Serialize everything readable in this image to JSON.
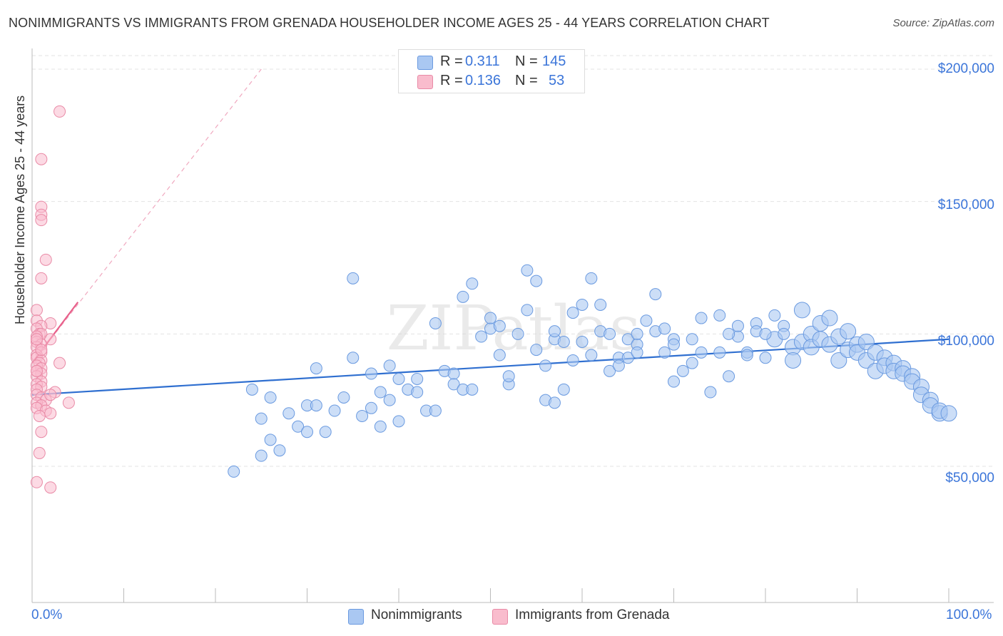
{
  "title": "NONIMMIGRANTS VS IMMIGRANTS FROM GRENADA HOUSEHOLDER INCOME AGES 25 - 44 YEARS CORRELATION CHART",
  "source": "Source: ZipAtlas.com",
  "watermark": "ZIPatlas",
  "legend": {
    "r_label": "R =",
    "n_label": "N =",
    "rows": [
      {
        "r": "0.311",
        "n": "145",
        "fill": "#aac8f2",
        "stroke": "#6a9ae0"
      },
      {
        "r": "0.136",
        "n": "53",
        "fill": "#f9bccd",
        "stroke": "#e98aa6"
      }
    ]
  },
  "bottom_legend": [
    {
      "label": "Nonimmigrants",
      "fill": "#aac8f2",
      "stroke": "#6a9ae0"
    },
    {
      "label": "Immigrants from Grenada",
      "fill": "#f9bccd",
      "stroke": "#e98aa6"
    }
  ],
  "colors": {
    "blue": "#3b75d9",
    "blue_line": "#2f6fd0",
    "pink": "#e85f8a",
    "grid": "#e3e3e3"
  },
  "chart_data": {
    "type": "scatter",
    "ylabel": "Householder Income Ages 25 - 44 years",
    "x_tick_labels": [
      "0.0%",
      "100.0%"
    ],
    "y_tick_labels": [
      "$200,000",
      "$150,000",
      "$100,000",
      "$50,000"
    ],
    "y_ticks": [
      200000,
      150000,
      100000,
      50000
    ],
    "xlim": [
      0,
      100
    ],
    "ylim": [
      0,
      205000
    ],
    "grid": true,
    "series": [
      {
        "name": "Nonimmigrants",
        "trend": {
          "x0": 0,
          "y0": 77000,
          "x1": 100,
          "y1": 98000
        },
        "points": [
          [
            22,
            48,
            1
          ],
          [
            25,
            54,
            1
          ],
          [
            26,
            60,
            1
          ],
          [
            27,
            56,
            1
          ],
          [
            25,
            68,
            1
          ],
          [
            26,
            76,
            1
          ],
          [
            28,
            70,
            1
          ],
          [
            24,
            79,
            1
          ],
          [
            29,
            65,
            1
          ],
          [
            30,
            63,
            1
          ],
          [
            30,
            73,
            1
          ],
          [
            31,
            73,
            1
          ],
          [
            31,
            87,
            1
          ],
          [
            32,
            63,
            1
          ],
          [
            33,
            71,
            1
          ],
          [
            34,
            76,
            1
          ],
          [
            35,
            91,
            1
          ],
          [
            35,
            121,
            1
          ],
          [
            36,
            69,
            1
          ],
          [
            37,
            72,
            1
          ],
          [
            37,
            85,
            1
          ],
          [
            38,
            65,
            1
          ],
          [
            38,
            78,
            1
          ],
          [
            39,
            88,
            1
          ],
          [
            39,
            75,
            1
          ],
          [
            40,
            67,
            1
          ],
          [
            40,
            83,
            1
          ],
          [
            41,
            79,
            1
          ],
          [
            42,
            78,
            1
          ],
          [
            42,
            83,
            1
          ],
          [
            43,
            71,
            1
          ],
          [
            44,
            104,
            1
          ],
          [
            44,
            71,
            1
          ],
          [
            45,
            86,
            1
          ],
          [
            46,
            85,
            1
          ],
          [
            46,
            81,
            1
          ],
          [
            47,
            79,
            1
          ],
          [
            47,
            114,
            1
          ],
          [
            48,
            119,
            1
          ],
          [
            48,
            79,
            1
          ],
          [
            49,
            99,
            1
          ],
          [
            50,
            102,
            1
          ],
          [
            50,
            106,
            1
          ],
          [
            51,
            103,
            1
          ],
          [
            51,
            92,
            1
          ],
          [
            52,
            81,
            1
          ],
          [
            53,
            100,
            1
          ],
          [
            54,
            124,
            1
          ],
          [
            54,
            109,
            1
          ],
          [
            55,
            120,
            1
          ],
          [
            55,
            94,
            1
          ],
          [
            56,
            88,
            1
          ],
          [
            56,
            75,
            1
          ],
          [
            57,
            74,
            1
          ],
          [
            57,
            98,
            1
          ],
          [
            58,
            79,
            1
          ],
          [
            58,
            97,
            1
          ],
          [
            59,
            90,
            1
          ],
          [
            59,
            108,
            1
          ],
          [
            60,
            111,
            1
          ],
          [
            60,
            97,
            1
          ],
          [
            61,
            121,
            1
          ],
          [
            61,
            92,
            1
          ],
          [
            62,
            111,
            1
          ],
          [
            62,
            101,
            1
          ],
          [
            63,
            86,
            1
          ],
          [
            63,
            100,
            1
          ],
          [
            64,
            91,
            1
          ],
          [
            64,
            88,
            1
          ],
          [
            65,
            98,
            1
          ],
          [
            65,
            91,
            1
          ],
          [
            66,
            96,
            1
          ],
          [
            66,
            93,
            1
          ],
          [
            67,
            105,
            1
          ],
          [
            68,
            101,
            1
          ],
          [
            68,
            115,
            1
          ],
          [
            69,
            93,
            1
          ],
          [
            69,
            102,
            1
          ],
          [
            70,
            98,
            1
          ],
          [
            70,
            96,
            1
          ],
          [
            71,
            86,
            1
          ],
          [
            72,
            89,
            1
          ],
          [
            72,
            98,
            1
          ],
          [
            73,
            93,
            1
          ],
          [
            73,
            106,
            1
          ],
          [
            74,
            78,
            1
          ],
          [
            75,
            107,
            1
          ],
          [
            75,
            93,
            1
          ],
          [
            76,
            84,
            1
          ],
          [
            77,
            99,
            1
          ],
          [
            77,
            103,
            1
          ],
          [
            78,
            93,
            1
          ],
          [
            79,
            104,
            1
          ],
          [
            79,
            101,
            1
          ],
          [
            80,
            91,
            1
          ],
          [
            81,
            107,
            1
          ],
          [
            81,
            98,
            2
          ],
          [
            82,
            103,
            1
          ],
          [
            82,
            100,
            1
          ],
          [
            83,
            95,
            2
          ],
          [
            83,
            90,
            2
          ],
          [
            84,
            109,
            2
          ],
          [
            84,
            97,
            2
          ],
          [
            85,
            100,
            2
          ],
          [
            85,
            95,
            2
          ],
          [
            86,
            98,
            2
          ],
          [
            86,
            104,
            2
          ],
          [
            87,
            106,
            2
          ],
          [
            87,
            96,
            2
          ],
          [
            88,
            90,
            2
          ],
          [
            88,
            99,
            2
          ],
          [
            89,
            101,
            2
          ],
          [
            89,
            94,
            2
          ],
          [
            90,
            96,
            2
          ],
          [
            90,
            93,
            2
          ],
          [
            91,
            97,
            2
          ],
          [
            91,
            90,
            2
          ],
          [
            92,
            86,
            2
          ],
          [
            92,
            93,
            2
          ],
          [
            93,
            91,
            2
          ],
          [
            93,
            88,
            2
          ],
          [
            94,
            89,
            2
          ],
          [
            94,
            86,
            2
          ],
          [
            95,
            87,
            2
          ],
          [
            95,
            85,
            2
          ],
          [
            96,
            84,
            2
          ],
          [
            96,
            82,
            2
          ],
          [
            97,
            80,
            2
          ],
          [
            97,
            77,
            2
          ],
          [
            98,
            75,
            2
          ],
          [
            98,
            73,
            2
          ],
          [
            99,
            70,
            2
          ],
          [
            99,
            71,
            2
          ],
          [
            100,
            70,
            2
          ],
          [
            78,
            92,
            1
          ],
          [
            66,
            100,
            1
          ],
          [
            70,
            82,
            1
          ],
          [
            76,
            100,
            1
          ],
          [
            80,
            100,
            1
          ],
          [
            57,
            101,
            1
          ],
          [
            52,
            84,
            1
          ]
        ]
      },
      {
        "name": "Immigrants from Grenada",
        "trend": {
          "x0": 0,
          "y0": 89000,
          "x1": 5,
          "y1": 112000,
          "dash_x1": 25,
          "dash_y1": 200000
        },
        "points": [
          [
            3,
            184
          ],
          [
            1,
            166
          ],
          [
            1,
            148
          ],
          [
            1,
            145
          ],
          [
            1,
            143
          ],
          [
            1.5,
            128
          ],
          [
            1,
            121
          ],
          [
            0.5,
            109
          ],
          [
            0.5,
            105
          ],
          [
            2,
            104
          ],
          [
            1,
            103
          ],
          [
            0.5,
            102
          ],
          [
            0.8,
            100
          ],
          [
            1,
            100
          ],
          [
            0.5,
            99
          ],
          [
            2,
            98
          ],
          [
            0.5,
            97
          ],
          [
            1,
            96
          ],
          [
            0.5,
            95
          ],
          [
            1,
            93
          ],
          [
            0.5,
            92
          ],
          [
            0.5,
            91
          ],
          [
            1,
            90
          ],
          [
            0.8,
            89
          ],
          [
            3,
            89
          ],
          [
            0.5,
            88
          ],
          [
            1,
            87
          ],
          [
            0.5,
            86
          ],
          [
            1,
            85
          ],
          [
            0.5,
            84
          ],
          [
            1,
            82
          ],
          [
            0.5,
            81
          ],
          [
            1,
            80
          ],
          [
            0.5,
            79
          ],
          [
            2.5,
            78
          ],
          [
            0.5,
            77
          ],
          [
            1,
            76
          ],
          [
            1.5,
            75
          ],
          [
            0.5,
            74
          ],
          [
            4,
            74
          ],
          [
            1,
            73
          ],
          [
            0.5,
            72
          ],
          [
            1.5,
            71
          ],
          [
            2,
            70
          ],
          [
            0.8,
            69
          ],
          [
            1,
            63
          ],
          [
            0.8,
            55
          ],
          [
            0.5,
            44
          ],
          [
            2,
            42
          ],
          [
            0.5,
            98
          ],
          [
            1,
            94
          ],
          [
            0.5,
            86
          ],
          [
            2,
            77
          ]
        ]
      }
    ]
  }
}
